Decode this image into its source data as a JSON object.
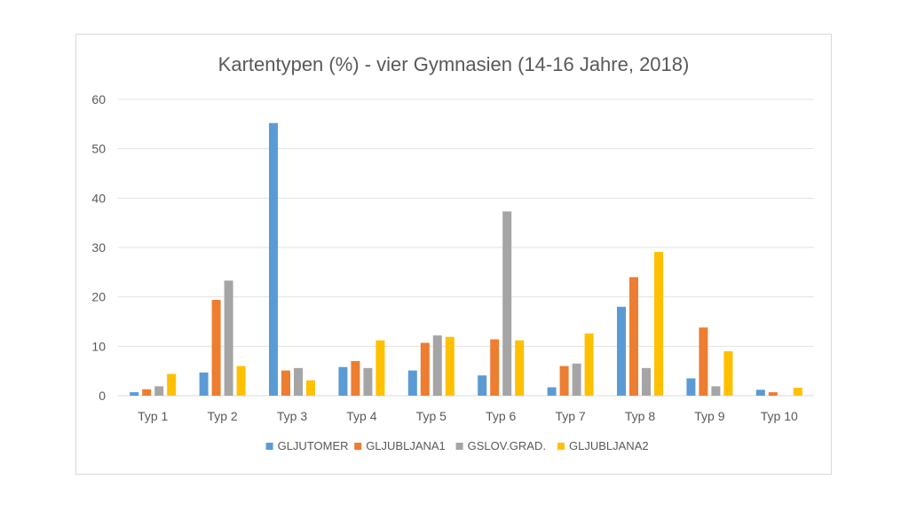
{
  "chart_data": {
    "type": "bar",
    "title": "Kartentypen (%) - vier Gymnasien (14-16 Jahre, 2018)",
    "xlabel": "",
    "ylabel": "",
    "ylim": [
      0,
      60
    ],
    "yticks": [
      "0",
      "10",
      "20",
      "30",
      "40",
      "50",
      "60"
    ],
    "grid": true,
    "legend_position": "bottom",
    "categories": [
      "Typ 1",
      "Typ 2",
      "Typ 3",
      "Typ 4",
      "Typ 5",
      "Typ 6",
      "Typ 7",
      "Typ 8",
      "Typ 9",
      "Typ 10"
    ],
    "series": [
      {
        "name": "GLJUTOMER",
        "color": "#5b9bd5",
        "values": [
          0.7,
          4.7,
          55.2,
          5.8,
          5.1,
          4.1,
          1.7,
          18.0,
          3.5,
          1.2
        ]
      },
      {
        "name": "GLJUBLJANA1",
        "color": "#ed7d31",
        "values": [
          1.3,
          19.4,
          5.1,
          7.0,
          10.7,
          11.4,
          6.0,
          24.0,
          13.8,
          0.7
        ]
      },
      {
        "name": "GSLOV.GRAD.",
        "color": "#a5a5a5",
        "values": [
          1.9,
          23.3,
          5.6,
          5.6,
          12.2,
          37.3,
          6.5,
          5.6,
          1.9,
          0.0
        ]
      },
      {
        "name": "GLJUBLJANA2",
        "color": "#ffc000",
        "values": [
          4.4,
          6.0,
          3.1,
          11.2,
          11.9,
          11.2,
          12.6,
          29.1,
          9.0,
          1.6
        ]
      }
    ]
  }
}
